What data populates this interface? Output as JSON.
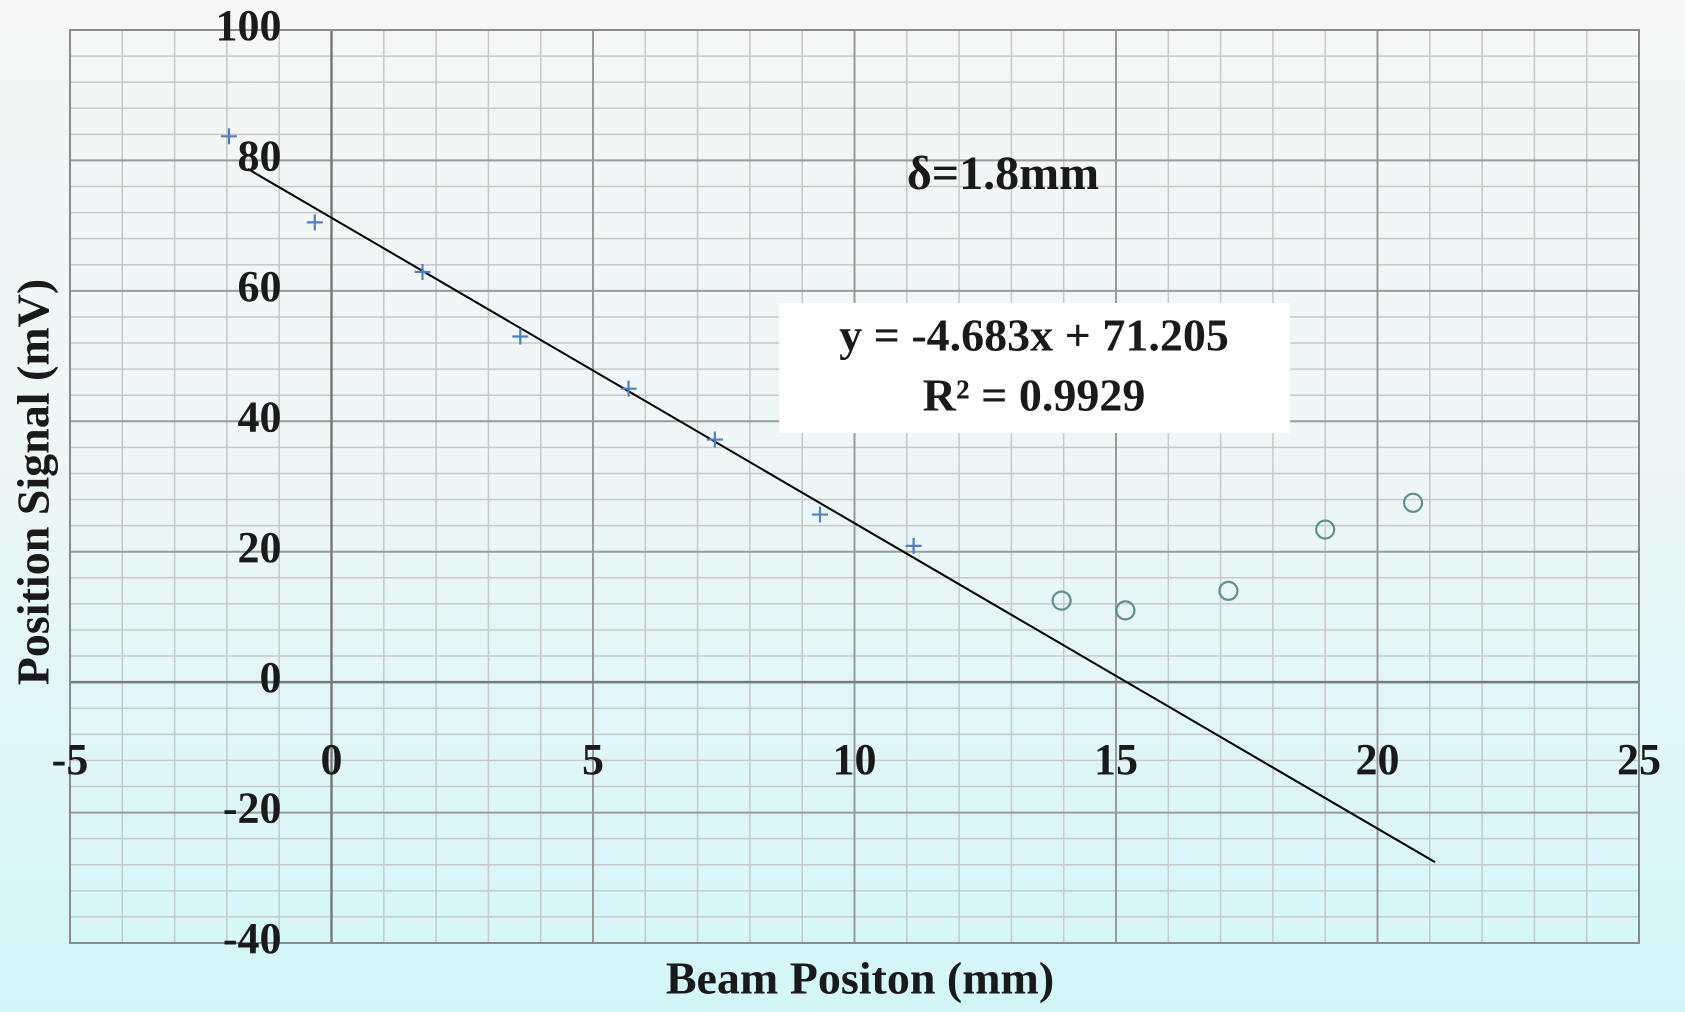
{
  "chart_data": {
    "type": "scatter",
    "x_label": "Beam Positon (mm)",
    "y_label": "Position Signal (mV)",
    "annotation": "δ=1.8mm",
    "xlim": [
      -5,
      25
    ],
    "xticks": [
      -5,
      0,
      5,
      10,
      15,
      20,
      25
    ],
    "ylim": [
      -40,
      100
    ],
    "yticks": [
      -40,
      -20,
      0,
      20,
      40,
      60,
      80,
      100
    ],
    "grid": true,
    "minor_grid": 5,
    "series": [
      {
        "marker": "plus",
        "color": "#4f7fbf",
        "x": [
          -1.96,
          -0.32,
          1.74,
          3.61,
          5.68,
          7.33,
          9.34,
          11.13
        ],
        "values": [
          83.7,
          70.5,
          62.9,
          53.0,
          45.0,
          37.2,
          25.7,
          20.9
        ]
      },
      {
        "marker": "circle",
        "color": "#5f8f8f",
        "x": [
          13.96,
          15.18,
          17.15,
          19.0,
          20.68
        ],
        "values": [
          12.5,
          11.0,
          14.0,
          23.4,
          27.5
        ]
      }
    ],
    "trendline": {
      "equation": "y = -4.683x + 71.205",
      "r2": "R² = 0.9929",
      "slope": -4.683,
      "intercept": 71.205,
      "x_range": [
        -1.6,
        21.1
      ],
      "color": "#000000"
    }
  }
}
